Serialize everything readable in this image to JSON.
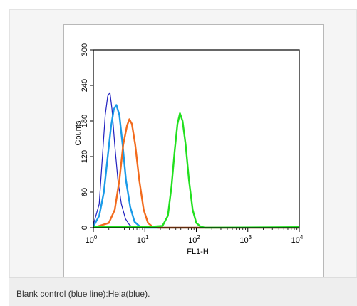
{
  "caption": "Blank control (blue line):Hela(blue).",
  "chart_data": {
    "type": "line",
    "xlabel": "FL1-H",
    "ylabel": "Counts",
    "x_scale": "log",
    "xlim": [
      1,
      10000
    ],
    "ylim": [
      0,
      300
    ],
    "x_ticks": [
      {
        "value": 1,
        "base": "10",
        "exp": "0"
      },
      {
        "value": 10,
        "base": "10",
        "exp": "1"
      },
      {
        "value": 100,
        "base": "10",
        "exp": "2"
      },
      {
        "value": 1000,
        "base": "10",
        "exp": "3"
      },
      {
        "value": 10000,
        "base": "10",
        "exp": "4"
      }
    ],
    "y_ticks": [
      "0",
      "60",
      "120",
      "180",
      "240",
      "300"
    ],
    "grid": false,
    "series": [
      {
        "color": "#1f1fbf",
        "points": [
          [
            1.0,
            5
          ],
          [
            1.3,
            40
          ],
          [
            1.5,
            120
          ],
          [
            1.7,
            190
          ],
          [
            1.9,
            222
          ],
          [
            2.1,
            228
          ],
          [
            2.3,
            200
          ],
          [
            2.6,
            140
          ],
          [
            3.0,
            80
          ],
          [
            3.5,
            40
          ],
          [
            4.2,
            15
          ],
          [
            5.0,
            5
          ],
          [
            6.0,
            0
          ],
          [
            30,
            0
          ],
          [
            10000,
            0
          ]
        ]
      },
      {
        "color": "#1a9be8",
        "points": [
          [
            1.0,
            2
          ],
          [
            1.3,
            20
          ],
          [
            1.6,
            60
          ],
          [
            1.9,
            120
          ],
          [
            2.2,
            170
          ],
          [
            2.5,
            200
          ],
          [
            2.8,
            207
          ],
          [
            3.2,
            190
          ],
          [
            3.7,
            140
          ],
          [
            4.3,
            80
          ],
          [
            5.2,
            35
          ],
          [
            6.3,
            10
          ],
          [
            8.0,
            2
          ],
          [
            10,
            0
          ],
          [
            10000,
            0
          ]
        ]
      },
      {
        "color": "#f26b1d",
        "points": [
          [
            1.0,
            0
          ],
          [
            2.0,
            8
          ],
          [
            2.6,
            30
          ],
          [
            3.2,
            80
          ],
          [
            3.8,
            140
          ],
          [
            4.5,
            172
          ],
          [
            5.0,
            183
          ],
          [
            5.6,
            175
          ],
          [
            6.5,
            140
          ],
          [
            7.8,
            80
          ],
          [
            9.5,
            30
          ],
          [
            11.5,
            8
          ],
          [
            14,
            2
          ],
          [
            18,
            0
          ],
          [
            10000,
            0
          ]
        ]
      },
      {
        "color": "#22e01f",
        "points": [
          [
            1.0,
            1
          ],
          [
            10,
            1
          ],
          [
            22,
            3
          ],
          [
            28,
            20
          ],
          [
            33,
            70
          ],
          [
            38,
            130
          ],
          [
            43,
            175
          ],
          [
            48,
            193
          ],
          [
            54,
            180
          ],
          [
            62,
            140
          ],
          [
            72,
            80
          ],
          [
            85,
            30
          ],
          [
            100,
            8
          ],
          [
            120,
            2
          ],
          [
            150,
            0
          ],
          [
            10000,
            1
          ]
        ]
      }
    ]
  }
}
